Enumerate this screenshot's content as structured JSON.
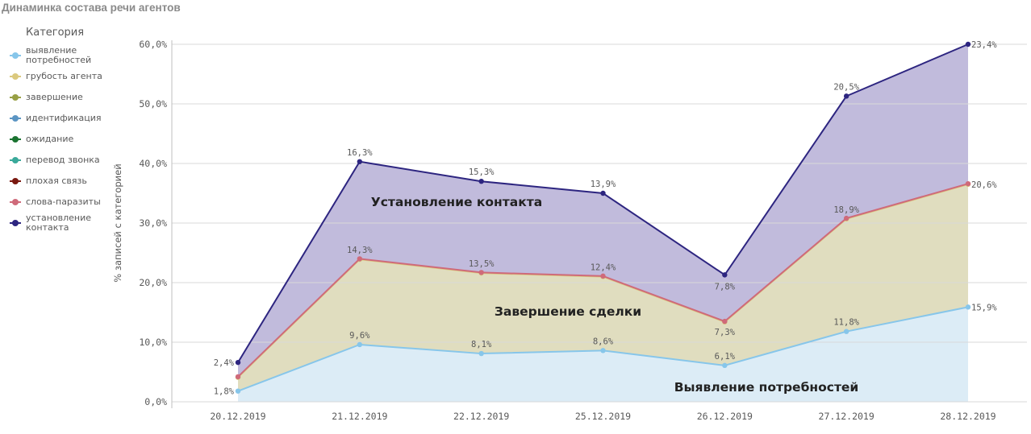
{
  "page_title": "Динаминка состава речи агентов",
  "legend": {
    "title": "Категория",
    "items": [
      {
        "label": "выявление потребностей",
        "color": "#87c6ea"
      },
      {
        "label": "грубость агента",
        "color": "#dbc97e"
      },
      {
        "label": "завершение",
        "color": "#98a045"
      },
      {
        "label": "идентификация",
        "color": "#5b95c3"
      },
      {
        "label": "ожидание",
        "color": "#1a7330"
      },
      {
        "label": "перевод звонка",
        "color": "#3aa99a"
      },
      {
        "label": "плохая связь",
        "color": "#7a1810"
      },
      {
        "label": "слова-паразиты",
        "color": "#cf6a7a"
      },
      {
        "label": "установление контакта",
        "color": "#2d2580"
      }
    ]
  },
  "chart_data": {
    "type": "area",
    "stacked": true,
    "x": [
      "20.12.2019",
      "21.12.2019",
      "22.12.2019",
      "25.12.2019",
      "26.12.2019",
      "27.12.2019",
      "28.12.2019"
    ],
    "ylabel": "% записей с категорией",
    "ylim": [
      0,
      60
    ],
    "yticks": [
      "0,0%",
      "10,0%",
      "20,0%",
      "30,0%",
      "40,0%",
      "50,0%",
      "60,0%"
    ],
    "grid": "horizontal",
    "legend_position": "left",
    "series": [
      {
        "name": "выявление потребностей",
        "color": "#87c6ea",
        "fill": "#dcecf6",
        "values": [
          1.8,
          9.6,
          8.1,
          8.6,
          6.1,
          11.8,
          15.9
        ],
        "labels": [
          "1,8%",
          "9,6%",
          "8,1%",
          "8,6%",
          "6,1%",
          "11,8%",
          "15,9%"
        ]
      },
      {
        "name": "грубость агента",
        "color": "#dbc97e",
        "fill": "#e0ddbf",
        "values": [
          2.3,
          14.3,
          13.5,
          12.4,
          7.3,
          18.9,
          20.6
        ],
        "labels": [
          "",
          "14,3%",
          "13,5%",
          "12,4%",
          "7,3%",
          "18,9%",
          "20,6%"
        ]
      },
      {
        "name": "слова-паразиты",
        "color": "#cf6a7a",
        "fill": "none",
        "values": [
          0.1,
          0.1,
          0.1,
          0.1,
          0.1,
          0.1,
          0.1
        ],
        "labels": [
          "",
          "",
          "",
          "",
          "",
          "",
          ""
        ]
      },
      {
        "name": "установление контакта",
        "color": "#2d2580",
        "fill": "#c1bbdc",
        "values": [
          2.4,
          16.3,
          15.3,
          13.9,
          7.8,
          20.5,
          23.4
        ],
        "labels": [
          "2,4%",
          "16,3%",
          "15,3%",
          "13,9%",
          "7,8%",
          "20,5%",
          "23,4%"
        ]
      }
    ],
    "annotations": [
      {
        "text": "Установление контакта",
        "x_index": 2,
        "y": 32
      },
      {
        "text": "Завершение сделки",
        "x_index": 3,
        "y": 15
      },
      {
        "text": "Выявление потребностей",
        "x_index": 5,
        "y": 2
      }
    ]
  }
}
